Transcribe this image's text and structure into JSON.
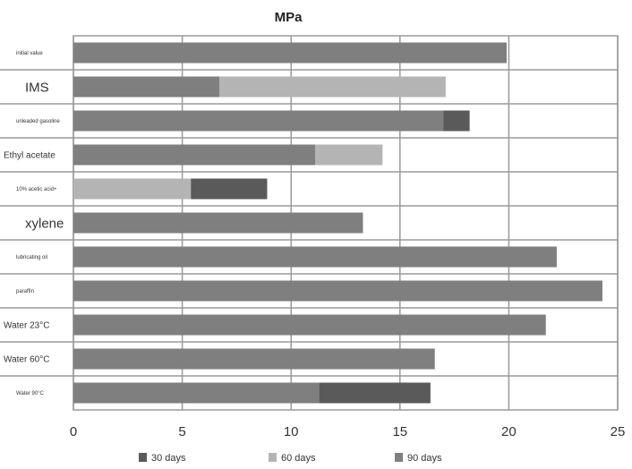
{
  "chart_data": {
    "type": "bar",
    "orientation": "horizontal",
    "title": "MPa",
    "xlim": [
      0,
      25
    ],
    "xticks": [
      "0",
      "5",
      "10",
      "15",
      "20",
      "25"
    ],
    "grid": true,
    "legend_position": "bottom",
    "categories": [
      "initial value",
      "IMS",
      "unleaded gasoline",
      "Ethyl acetate",
      "10% acetic acid+",
      "xylene",
      "lubricating oil",
      "paraffin",
      "Water 23°C",
      "Water 60°C",
      "Water 90°C"
    ],
    "category_label_sizes": [
      "small",
      "large",
      "small",
      "medium",
      "small",
      "large",
      "small",
      "small",
      "medium",
      "medium",
      "small"
    ],
    "legend": [
      {
        "label": "30 days",
        "color": "#5a5a5a"
      },
      {
        "label": "60 days",
        "color": "#b4b4b4"
      },
      {
        "label": "90 days",
        "color": "#7f7f7f"
      }
    ],
    "bars": [
      [
        {
          "series": "90 days",
          "value": 19.9
        }
      ],
      [
        {
          "series": "90 days",
          "value": 6.7
        },
        {
          "series": "60 days",
          "value": 17.1
        }
      ],
      [
        {
          "series": "90 days",
          "value": 17.0
        },
        {
          "series": "30 days",
          "value": 18.2
        }
      ],
      [
        {
          "series": "90 days",
          "value": 11.1
        },
        {
          "series": "60 days",
          "value": 14.2
        }
      ],
      [
        {
          "series": "60 days",
          "value": 5.4
        },
        {
          "series": "30 days",
          "value": 8.9
        }
      ],
      [
        {
          "series": "90 days",
          "value": 13.3
        }
      ],
      [
        {
          "series": "90 days",
          "value": 22.2
        }
      ],
      [
        {
          "series": "90 days",
          "value": 24.3
        }
      ],
      [
        {
          "series": "90 days",
          "value": 21.7
        }
      ],
      [
        {
          "series": "90 days",
          "value": 16.6
        }
      ],
      [
        {
          "series": "90 days",
          "value": 11.3
        },
        {
          "series": "30 days",
          "value": 16.4
        }
      ]
    ]
  }
}
